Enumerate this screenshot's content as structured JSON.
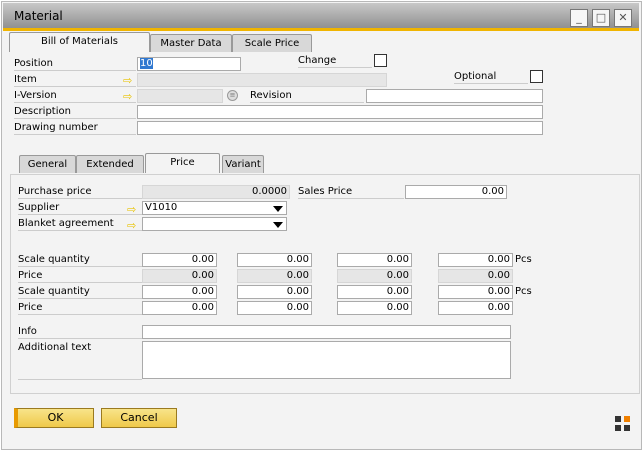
{
  "window": {
    "title": "Material"
  },
  "top_tabs": [
    "Bill of Materials",
    "Master Data",
    "Scale Price"
  ],
  "header": {
    "position_label": "Position",
    "position_value": "10",
    "change_label": "Change",
    "item_label": "Item",
    "optional_label": "Optional",
    "iversion_label": "I-Version",
    "revision_label": "Revision",
    "description_label": "Description",
    "drawing_label": "Drawing number"
  },
  "inner_tabs": [
    "General",
    "Extended",
    "Price",
    "Variant"
  ],
  "price": {
    "purchase_label": "Purchase price",
    "purchase_value": "0.0000",
    "sales_label": "Sales Price",
    "sales_value": "0.00",
    "supplier_label": "Supplier",
    "supplier_value": "V1010",
    "blanket_label": "Blanket agreement",
    "blanket_value": "",
    "rows": [
      {
        "label": "Scale quantity",
        "values": [
          "0.00",
          "0.00",
          "0.00",
          "0.00"
        ],
        "unit": "Pcs",
        "readonly": false
      },
      {
        "label": "Price",
        "values": [
          "0.00",
          "0.00",
          "0.00",
          "0.00"
        ],
        "unit": "",
        "readonly": true
      },
      {
        "label": "Scale quantity",
        "values": [
          "0.00",
          "0.00",
          "0.00",
          "0.00"
        ],
        "unit": "Pcs",
        "readonly": false
      },
      {
        "label": "Price",
        "values": [
          "0.00",
          "0.00",
          "0.00",
          "0.00"
        ],
        "unit": "",
        "readonly": false
      }
    ],
    "info_label": "Info",
    "info_value": "",
    "additional_label": "Additional text",
    "additional_value": ""
  },
  "buttons": {
    "ok": "OK",
    "cancel": "Cancel"
  },
  "colors": {
    "accent": "#f0b400",
    "button": "#f2d060"
  }
}
